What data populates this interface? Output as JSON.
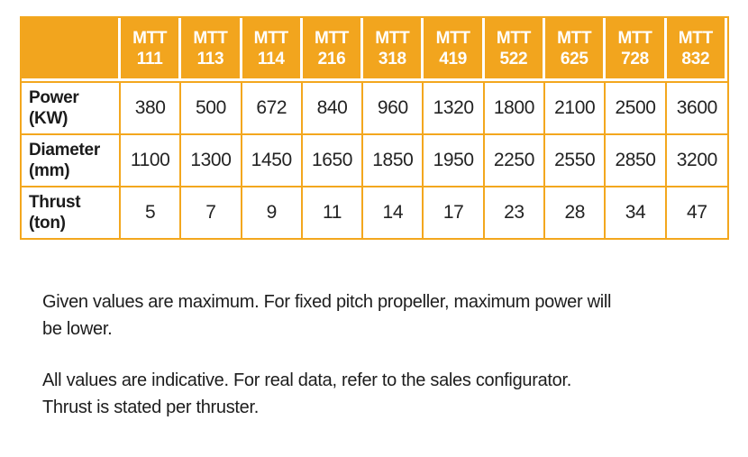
{
  "colors": {
    "header_orange": "#f2a51e",
    "border_orange": "#f3a71e",
    "header_text": "#ffffff",
    "body_text": "#1f1f1f"
  },
  "table": {
    "models": [
      "MTT\n111",
      "MTT\n113",
      "MTT\n114",
      "MTT\n216",
      "MTT\n318",
      "MTT\n419",
      "MTT\n522",
      "MTT\n625",
      "MTT\n728",
      "MTT\n832"
    ],
    "rows": [
      {
        "label": "Power\n(KW)",
        "values": [
          "380",
          "500",
          "672",
          "840",
          "960",
          "1320",
          "1800",
          "2100",
          "2500",
          "3600"
        ]
      },
      {
        "label": "Diameter\n(mm)",
        "values": [
          "1100",
          "1300",
          "1450",
          "1650",
          "1850",
          "1950",
          "2250",
          "2550",
          "2850",
          "3200"
        ]
      },
      {
        "label": "Thrust\n(ton)",
        "values": [
          "5",
          "7",
          "9",
          "11",
          "14",
          "17",
          "23",
          "28",
          "34",
          "47"
        ]
      }
    ]
  },
  "notes": [
    "Given values are maximum. For fixed pitch propeller, maximum power will\nbe lower.",
    "All values are indicative. For real data, refer to the sales configurator.\nThrust is stated per thruster."
  ]
}
